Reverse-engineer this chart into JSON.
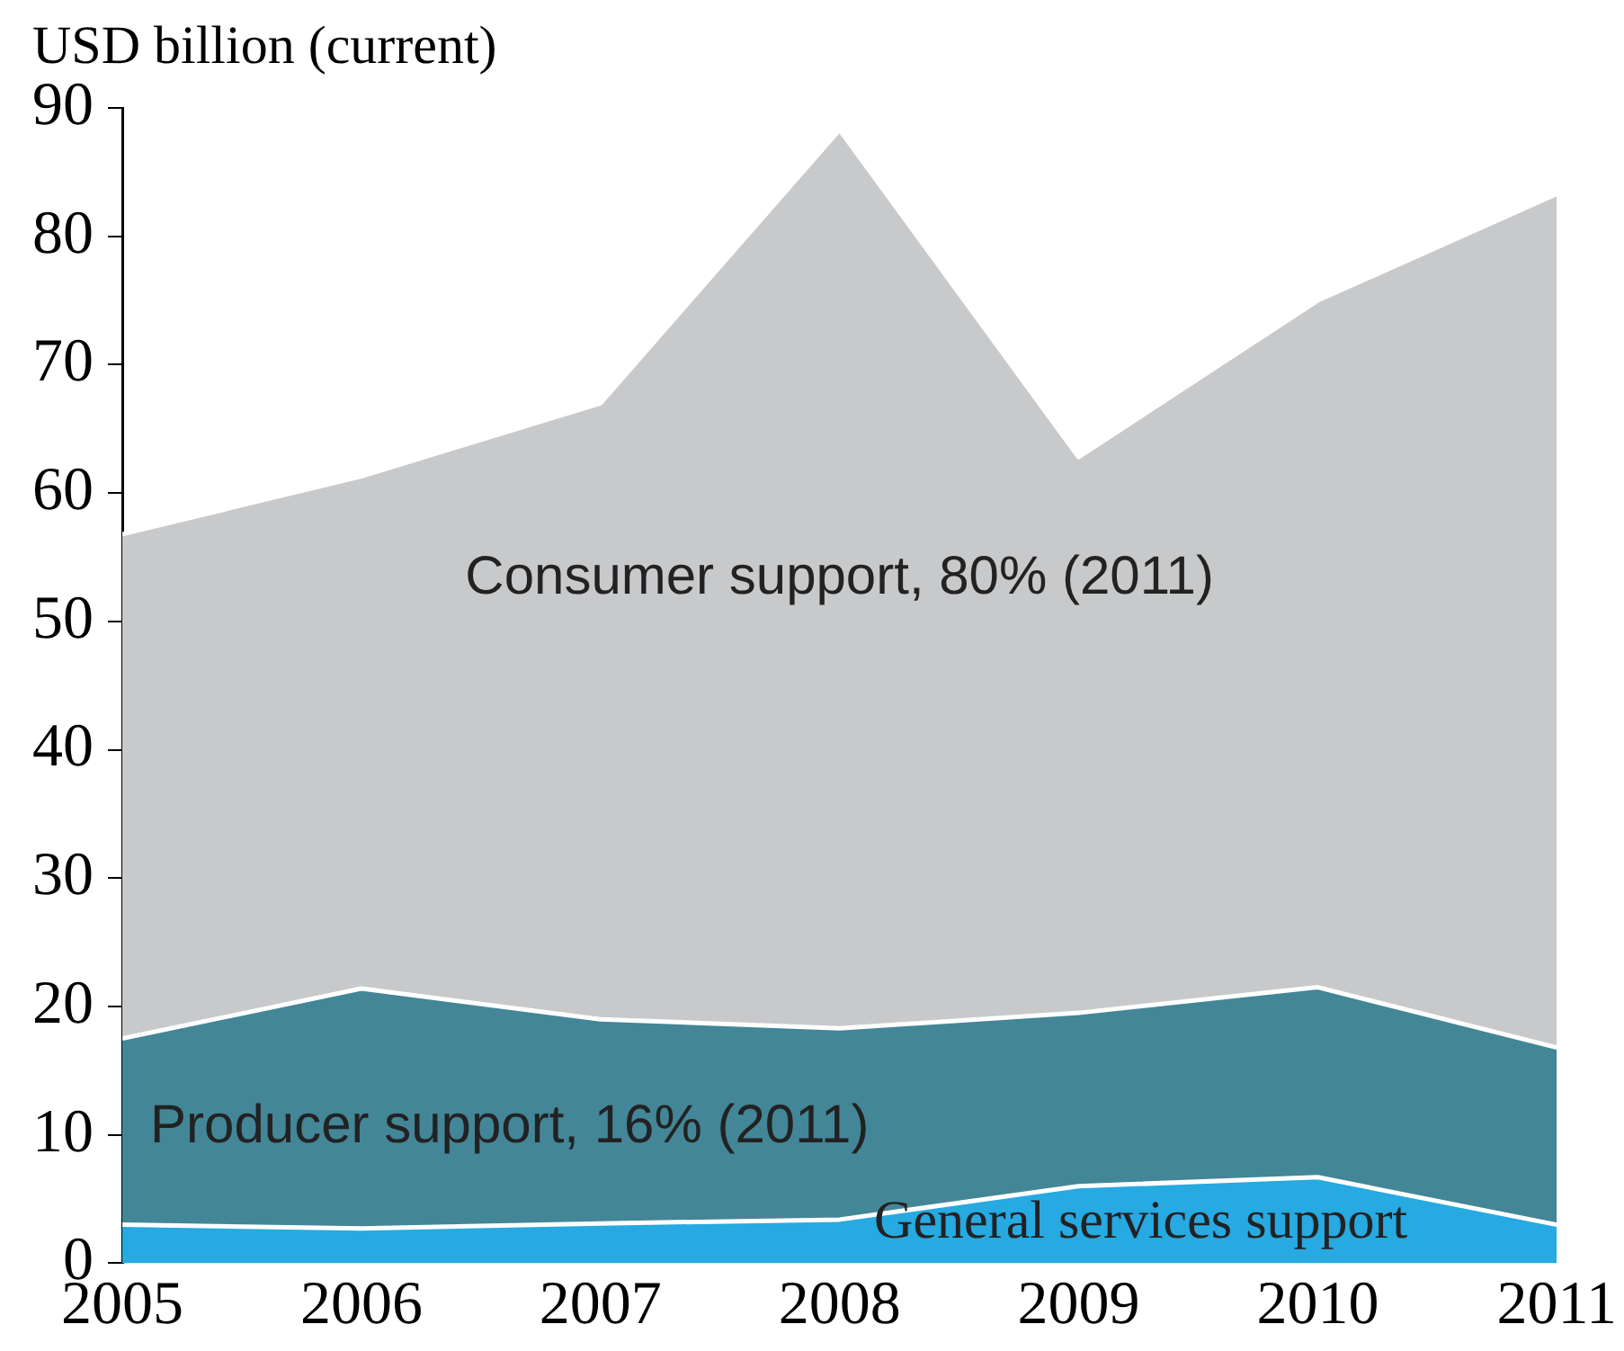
{
  "chart_data": {
    "type": "area",
    "ylabel": "USD billion (current)",
    "x": [
      2005,
      2006,
      2007,
      2008,
      2009,
      2010,
      2011
    ],
    "xlim": [
      2005,
      2011
    ],
    "xticks": [
      2005,
      2006,
      2007,
      2008,
      2009,
      2010,
      2011
    ],
    "ylim": [
      0,
      90
    ],
    "yticks": [
      0,
      10,
      20,
      30,
      40,
      50,
      60,
      70,
      80,
      90
    ],
    "stacked": true,
    "grid": false,
    "legend": false,
    "series": [
      {
        "name": "General services support",
        "color": "#27a9e1",
        "values": [
          3.0,
          2.7,
          3.1,
          3.4,
          6.0,
          6.7,
          3.0
        ]
      },
      {
        "name": "Producer support, 16% (2011)",
        "color": "#438697",
        "values": [
          14.5,
          18.7,
          15.9,
          14.9,
          13.5,
          14.8,
          13.8
        ]
      },
      {
        "name": "Consumer support, 80% (2011)",
        "color": "#c8c9cb",
        "values": [
          39.3,
          39.9,
          48.0,
          70.0,
          43.3,
          53.5,
          66.5
        ]
      }
    ]
  }
}
